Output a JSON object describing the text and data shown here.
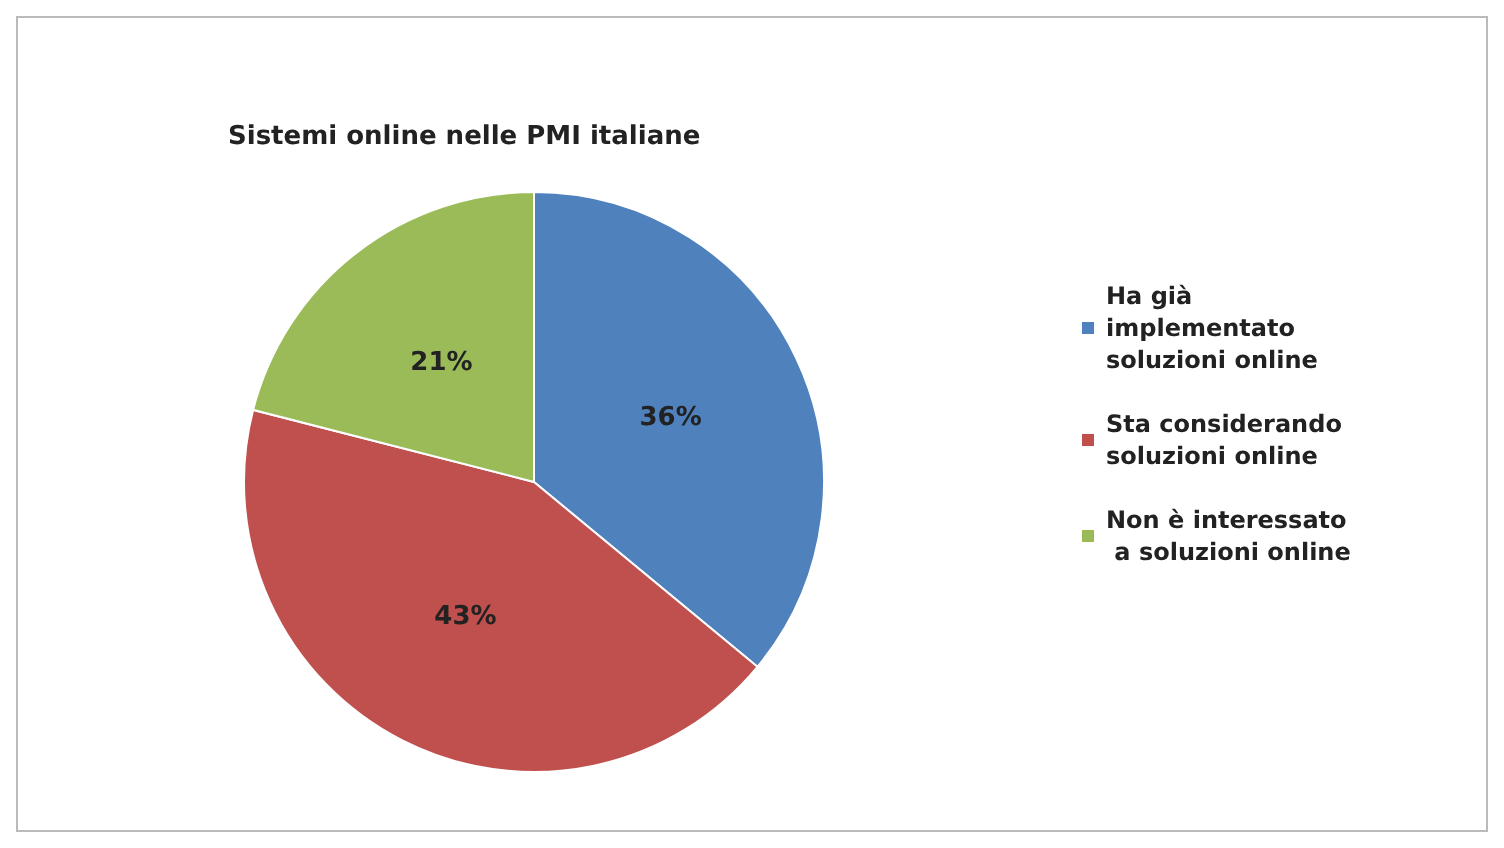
{
  "chart_data": {
    "type": "pie",
    "title": "Sistemi online nelle PMI italiane",
    "categories": [
      "Ha già implementato soluzioni online",
      "Sta considerando soluzioni online",
      "Non è interessato a soluzioni online"
    ],
    "values": [
      36,
      43,
      21
    ],
    "colors": [
      "#4f81bd",
      "#c0504d",
      "#9bbb59"
    ],
    "value_labels": [
      "36%",
      "43%",
      "21%"
    ],
    "legend": "right"
  }
}
